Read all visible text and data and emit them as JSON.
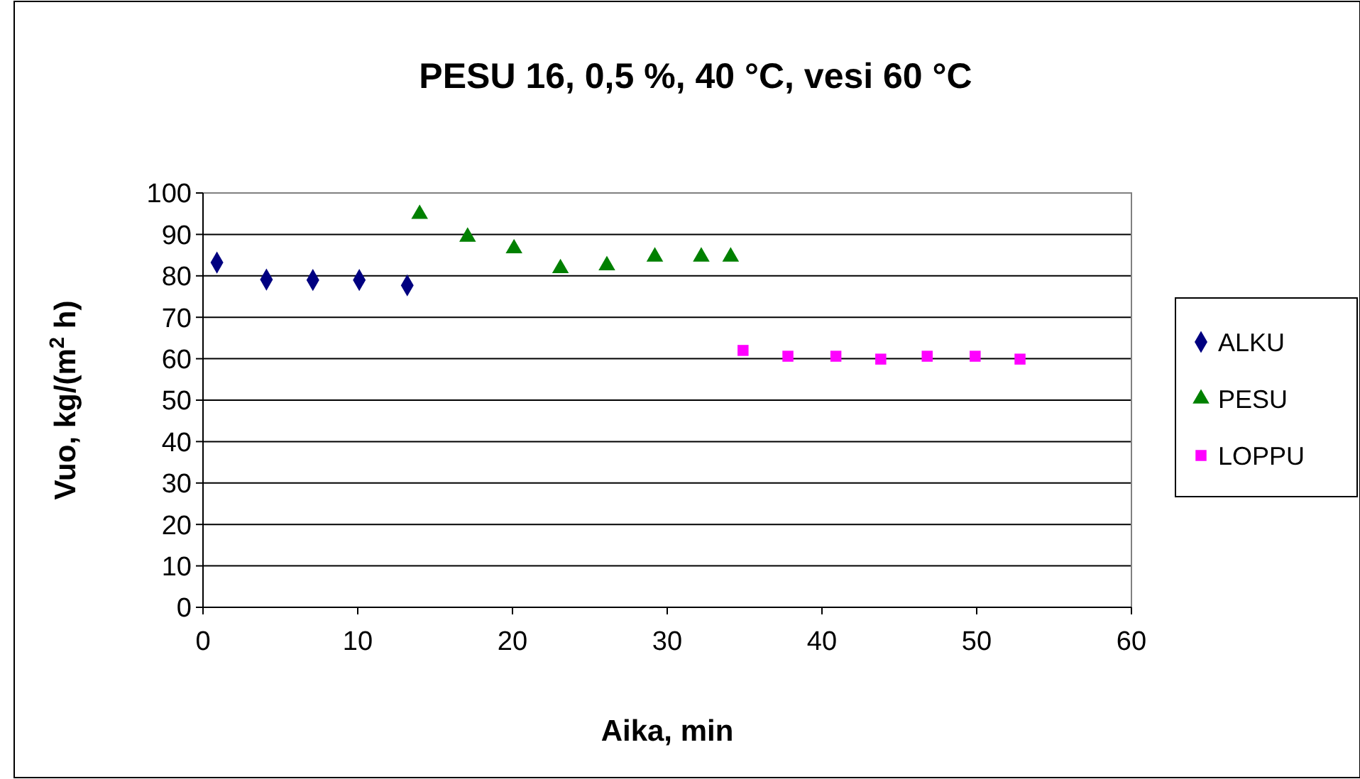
{
  "chart_data": {
    "type": "scatter",
    "title": "PESU 16, 0,5 %, 40 °C, vesi 60 °C",
    "xlabel": "Aika, min",
    "ylabel": "Vuo, kg/(m$^{2}$ h)",
    "xlim": [
      0,
      60
    ],
    "xticks": [
      0,
      10,
      20,
      30,
      40,
      50,
      60
    ],
    "ylim": [
      0,
      100
    ],
    "yticks": [
      0,
      10,
      20,
      30,
      40,
      50,
      60,
      70,
      80,
      90,
      100
    ],
    "grid": "y",
    "legend": "right",
    "series": [
      {
        "name": "ALKU",
        "color": "#000080",
        "marker": "diamond",
        "x": [
          0.9,
          4.1,
          7.1,
          10.1,
          13.2
        ],
        "values": [
          83.2,
          79.1,
          79,
          79,
          77.7
        ]
      },
      {
        "name": "PESU",
        "color": "#008000",
        "marker": "triangle",
        "x": [
          14,
          17.1,
          20.1,
          23.1,
          26.1,
          29.2,
          32.2,
          34.1
        ],
        "values": [
          94.9,
          89.4,
          86.6,
          81.8,
          82.5,
          84.6,
          84.6,
          84.6
        ]
      },
      {
        "name": "LOPPU",
        "color": "#ff00ff",
        "marker": "square",
        "x": [
          34.9,
          37.8,
          40.9,
          43.8,
          46.8,
          49.9,
          52.8
        ],
        "values": [
          62,
          60.6,
          60.6,
          59.9,
          60.6,
          60.6,
          59.9
        ]
      }
    ]
  }
}
